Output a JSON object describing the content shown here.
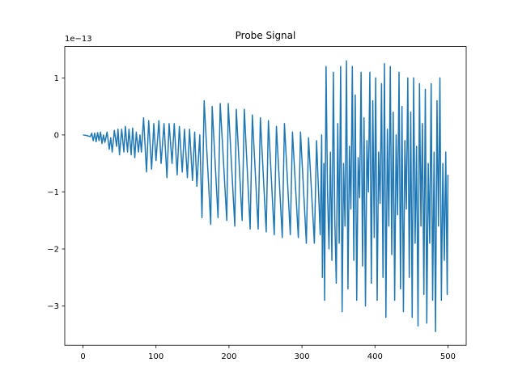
{
  "chart_data": {
    "type": "line",
    "title": "Probe Signal",
    "y_offset_text": "1e−13",
    "color": "#1f77b4",
    "x": [
      0,
      5,
      10,
      12,
      14,
      16,
      18,
      20,
      22,
      24,
      26,
      28,
      30,
      33,
      36,
      38,
      40,
      43,
      46,
      48,
      50,
      53,
      56,
      58,
      61,
      63,
      66,
      68,
      71,
      73,
      76,
      78,
      80,
      83,
      87,
      90,
      94,
      97,
      100,
      104,
      107,
      111,
      115,
      118,
      122,
      125,
      129,
      132,
      136,
      139,
      143,
      146,
      150,
      153,
      156,
      160,
      163,
      166,
      175,
      177,
      185,
      188,
      197,
      199,
      208,
      210,
      218,
      221,
      229,
      232,
      240,
      243,
      251,
      254,
      262,
      265,
      273,
      276,
      284,
      287,
      295,
      298,
      306,
      309,
      317,
      320,
      325,
      327,
      328,
      330,
      331,
      333,
      335,
      337,
      339,
      341,
      343,
      345,
      347,
      349,
      351,
      353,
      355,
      357,
      359,
      361,
      363,
      365,
      367,
      369,
      371,
      373,
      375,
      377,
      379,
      381,
      383,
      385,
      387,
      389,
      391,
      393,
      395,
      397,
      399,
      401,
      403,
      405,
      407,
      409,
      411,
      413,
      415,
      417,
      419,
      421,
      423,
      425,
      427,
      429,
      431,
      433,
      435,
      437,
      439,
      441,
      443,
      445,
      447,
      449,
      451,
      453,
      455,
      457,
      459,
      461,
      463,
      465,
      467,
      469,
      471,
      473,
      475,
      477,
      479,
      481,
      483,
      485,
      487,
      489,
      491,
      493,
      495,
      497,
      499,
      500
    ],
    "values": [
      0,
      -0.01,
      -0.03,
      0.03,
      -0.1,
      0.03,
      -0.12,
      0.04,
      -0.1,
      0.05,
      -0.15,
      0.0,
      -0.13,
      0.05,
      -0.25,
      -0.05,
      -0.3,
      0.08,
      -0.2,
      0.1,
      -0.35,
      0.1,
      -0.3,
      0.15,
      -0.3,
      0.1,
      -0.35,
      0.12,
      -0.4,
      0.05,
      -0.3,
      0.0,
      -0.3,
      0.3,
      -0.65,
      0.25,
      -0.6,
      0.2,
      -0.45,
      0.25,
      -0.5,
      0.2,
      -0.75,
      0.2,
      -0.5,
      0.2,
      -0.7,
      0.15,
      -0.65,
      0.1,
      -0.75,
      0.1,
      -0.8,
      0.05,
      -0.9,
      0.0,
      -1.45,
      0.6,
      -1.57,
      0.5,
      -1.45,
      0.55,
      -1.5,
      0.55,
      -1.6,
      0.45,
      -1.5,
      0.45,
      -1.65,
      0.35,
      -1.65,
      0.3,
      -1.7,
      0.25,
      -1.75,
      0.15,
      -1.8,
      0.2,
      -1.75,
      0.05,
      -1.8,
      0.05,
      -1.9,
      -0.05,
      -1.9,
      -0.1,
      -1.75,
      0.0,
      -2.5,
      -0.5,
      -2.9,
      1.2,
      -1.0,
      -2.0,
      -0.3,
      -2.2,
      1.1,
      -1.5,
      -2.6,
      0.2,
      -1.9,
      1.2,
      -3.1,
      -0.5,
      -1.6,
      1.3,
      -2.7,
      -0.2,
      -1.3,
      1.2,
      -2.2,
      0.7,
      -2.9,
      -0.4,
      -1.1,
      1.1,
      -2.3,
      0.3,
      -3.0,
      -0.1,
      -1.0,
      1.1,
      -2.6,
      0.6,
      -1.8,
      1.0,
      -2.9,
      -0.3,
      -1.2,
      0.9,
      -2.5,
      1.25,
      -3.2,
      0.1,
      -1.6,
      1.2,
      -2.1,
      0.4,
      -2.9,
      0.0,
      -1.4,
      1.1,
      -2.7,
      0.5,
      -3.1,
      -0.1,
      -1.3,
      1.0,
      -2.5,
      0.4,
      -3.2,
      1.0,
      -1.9,
      -0.2,
      -3.35,
      0.9,
      -1.6,
      0.2,
      -2.8,
      0.8,
      -3.3,
      -0.5,
      -1.9,
      0.9,
      -2.9,
      -0.3,
      -3.45,
      0.6,
      -1.6,
      1.0,
      -2.9,
      -0.5,
      -2.2,
      -0.3,
      -2.8,
      -0.7
    ],
    "xlim": [
      -25,
      525
    ],
    "ylim": [
      -3.69,
      1.55
    ],
    "xticks": [
      0,
      100,
      200,
      300,
      400,
      500
    ],
    "yticks": [
      {
        "value": -3,
        "label": "−3"
      },
      {
        "value": -2,
        "label": "−2"
      },
      {
        "value": -1,
        "label": "−1"
      },
      0,
      1
    ]
  }
}
